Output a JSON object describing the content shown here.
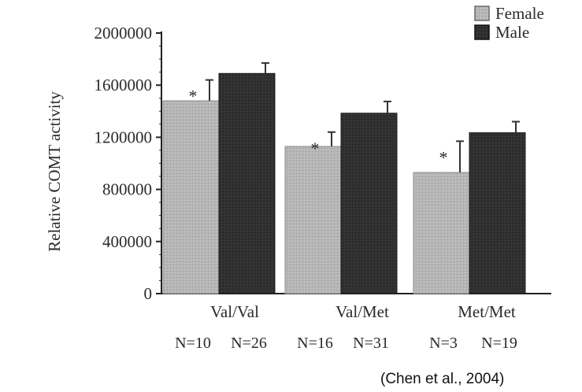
{
  "chart_data": {
    "type": "bar",
    "ylabel": "Relative COMT activity",
    "ylim": [
      0,
      2000000
    ],
    "yticks": [
      "0",
      "400000",
      "800000",
      "1200000",
      "1600000",
      "2000000"
    ],
    "categories": [
      "Val/Val",
      "Val/Met",
      "Met/Met"
    ],
    "series": [
      {
        "name": "Female",
        "color": "#b4b4b4",
        "values": [
          1480000,
          1130000,
          930000
        ],
        "errors": [
          160000,
          110000,
          240000
        ],
        "n_labels": [
          "N=10",
          "N=16",
          "N=3"
        ],
        "markers": [
          "*",
          "*",
          "*"
        ]
      },
      {
        "name": "Male",
        "color": "#333333",
        "values": [
          1690000,
          1385000,
          1235000
        ],
        "errors": [
          80000,
          90000,
          85000
        ],
        "n_labels": [
          "N=26",
          "N=31",
          "N=19"
        ],
        "markers": [
          "",
          "",
          ""
        ]
      }
    ],
    "grid": false,
    "legend_position": "top-right"
  },
  "citation": "(Chen et al., 2004)"
}
